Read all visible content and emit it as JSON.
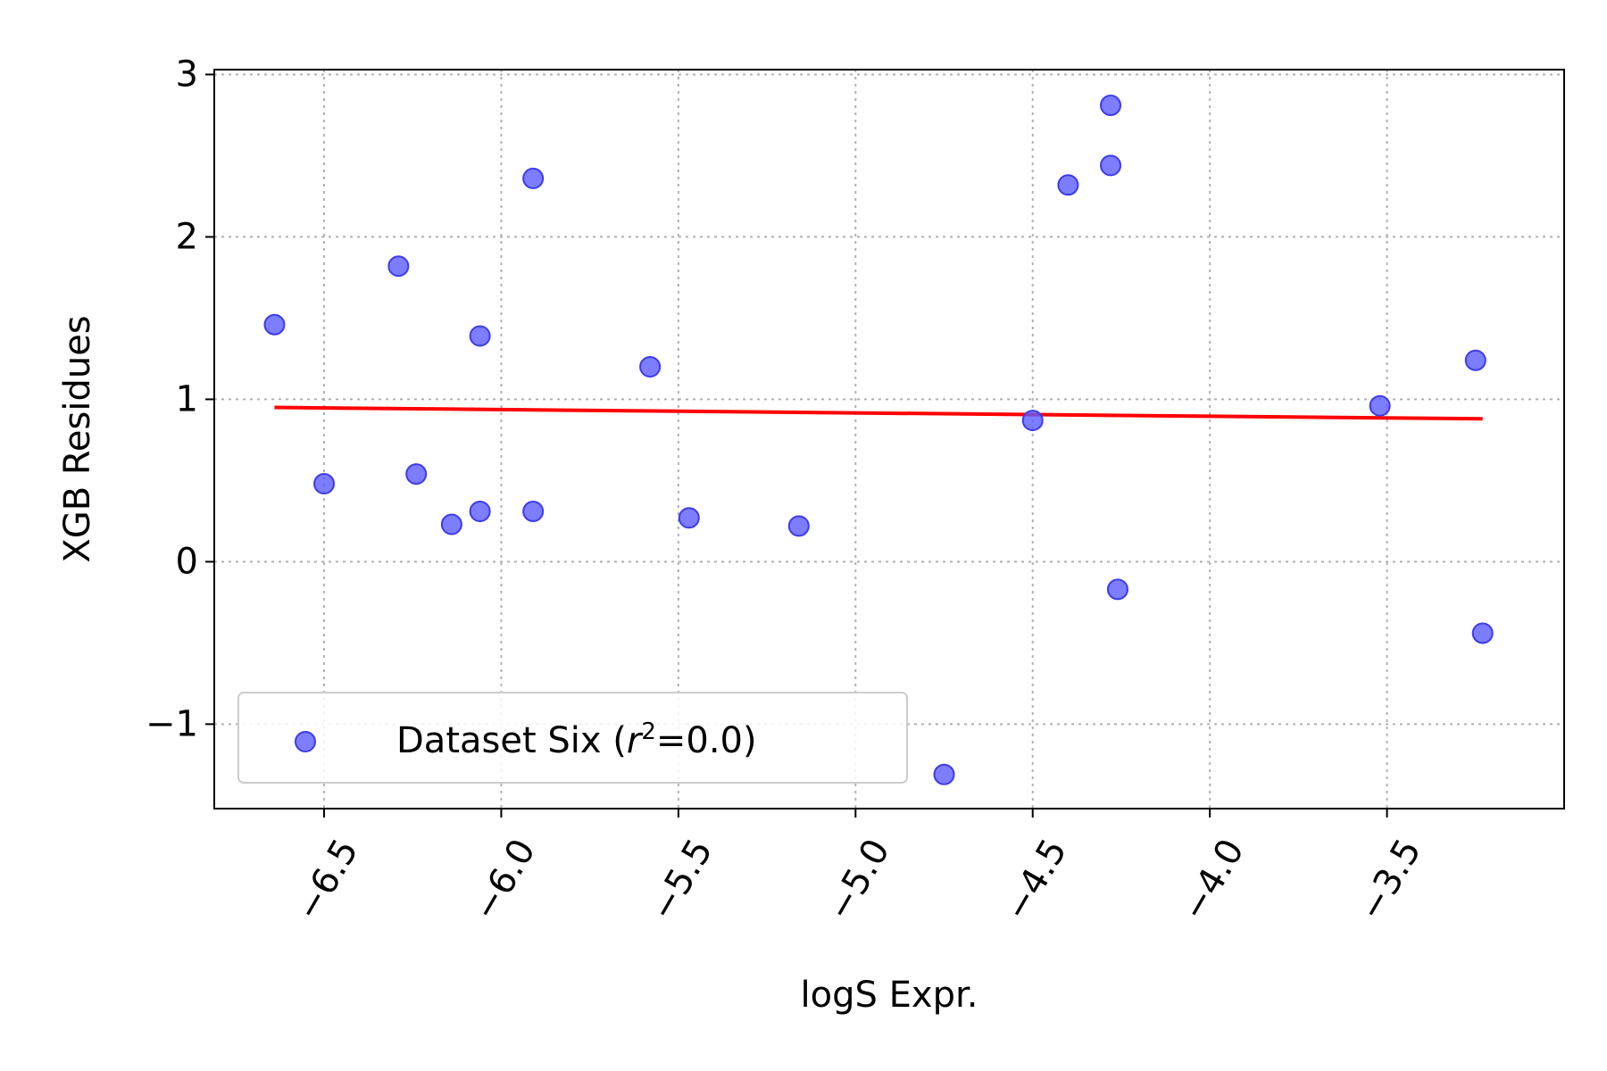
{
  "chart_data": {
    "type": "scatter",
    "title": "",
    "xlabel": "logS Expr.",
    "ylabel": "XGB Residues",
    "xlim": [
      -6.81,
      -3.0
    ],
    "ylim": [
      -1.52,
      3.03
    ],
    "xticks": [
      -6.5,
      -6.0,
      -5.5,
      -5.0,
      -4.5,
      -4.0,
      -3.5
    ],
    "xtick_labels": [
      "−6.5",
      "−6.0",
      "−5.5",
      "−5.0",
      "−4.5",
      "−4.0",
      "−3.5"
    ],
    "yticks": [
      -1,
      0,
      1,
      2,
      3
    ],
    "ytick_labels": [
      "−1",
      "0",
      "1",
      "2",
      "3"
    ],
    "grid": true,
    "legend": {
      "placement": "lower-left",
      "label_prefix": "Dataset Six (",
      "label_var": "r",
      "label_sup": "2",
      "label_suffix": "=0.0)"
    },
    "colors": {
      "points": "#5c5cff",
      "points_edge": "#3b3bf0",
      "fit_line": "#ff0000",
      "grid": "#b0b0b0"
    },
    "points": {
      "x": [
        -6.64,
        -6.5,
        -6.29,
        -6.24,
        -6.14,
        -6.06,
        -6.06,
        -5.91,
        -5.91,
        -5.58,
        -5.47,
        -5.16,
        -4.75,
        -4.5,
        -4.4,
        -4.28,
        -4.28,
        -4.26,
        -3.52,
        -3.25,
        -3.23
      ],
      "y": [
        1.46,
        0.48,
        1.82,
        0.54,
        0.23,
        1.39,
        0.31,
        2.36,
        0.31,
        1.2,
        0.27,
        0.22,
        -1.31,
        0.87,
        2.32,
        2.81,
        2.44,
        -0.17,
        0.96,
        1.24,
        -0.44
      ]
    },
    "fit_line": {
      "x": [
        -6.64,
        -3.23
      ],
      "y": [
        0.95,
        0.88
      ]
    }
  }
}
